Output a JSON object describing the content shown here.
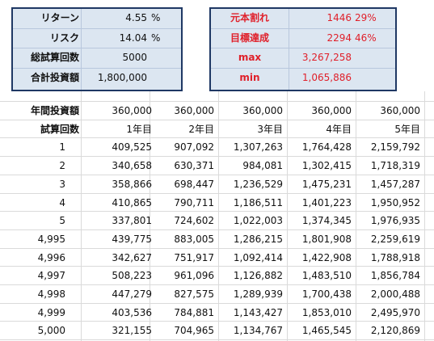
{
  "summary_left": {
    "rows": [
      [
        "リターン",
        "4.55",
        "%"
      ],
      [
        "リスク",
        "14.04",
        "%"
      ],
      [
        "総試算回数",
        "5000"
      ],
      [
        "合計投資額",
        "1,800,000"
      ]
    ]
  },
  "summary_right": {
    "rows": [
      [
        "元本割れ",
        "1446",
        "29%"
      ],
      [
        "目標達成",
        "2294",
        "46%"
      ],
      [
        "max",
        "3,267,258"
      ],
      [
        "min",
        "1,065,886"
      ]
    ]
  },
  "table": {
    "annual_label": "年間投資額",
    "annual": [
      "360,000",
      "360,000",
      "360,000",
      "360,000",
      "360,000"
    ],
    "trial_label": "試算回数",
    "years": [
      "1年目",
      "2年目",
      "3年目",
      "4年目",
      "5年目"
    ],
    "rows": [
      [
        "1",
        "409,525",
        "907,092",
        "1,307,263",
        "1,764,428",
        "2,159,792"
      ],
      [
        "2",
        "340,658",
        "630,371",
        "984,081",
        "1,302,415",
        "1,718,319"
      ],
      [
        "3",
        "358,866",
        "698,447",
        "1,236,529",
        "1,475,231",
        "1,457,287"
      ],
      [
        "4",
        "410,865",
        "790,711",
        "1,186,511",
        "1,401,223",
        "1,950,952"
      ],
      [
        "5",
        "337,801",
        "724,602",
        "1,022,003",
        "1,374,345",
        "1,976,935"
      ],
      [
        "4,995",
        "439,775",
        "883,005",
        "1,286,215",
        "1,801,908",
        "2,259,619"
      ],
      [
        "4,996",
        "342,627",
        "751,917",
        "1,092,414",
        "1,422,908",
        "1,788,918"
      ],
      [
        "4,997",
        "508,223",
        "961,096",
        "1,126,882",
        "1,483,510",
        "1,856,784"
      ],
      [
        "4,998",
        "447,279",
        "827,575",
        "1,289,939",
        "1,700,438",
        "2,000,488"
      ],
      [
        "4,999",
        "403,536",
        "784,881",
        "1,143,427",
        "1,853,010",
        "2,495,970"
      ],
      [
        "5,000",
        "321,155",
        "704,965",
        "1,134,767",
        "1,465,545",
        "2,120,869"
      ]
    ]
  }
}
